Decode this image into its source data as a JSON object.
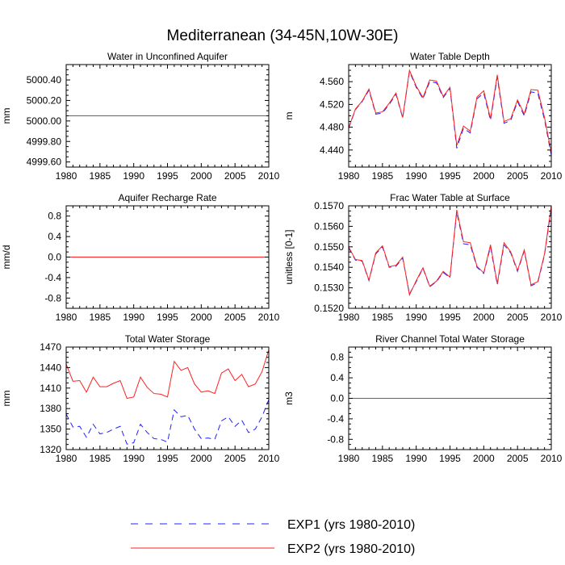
{
  "figure": {
    "title": "Mediterranean (34-45N,10W-30E)"
  },
  "legend": {
    "entries": [
      {
        "label": "EXP1 (yrs 1980-2010)",
        "color": "#2020ff",
        "dash": "dashed"
      },
      {
        "label": "EXP2 (yrs 1980-2010)",
        "color": "#ff2020",
        "dash": "solid"
      }
    ]
  },
  "chart_data": [
    {
      "type": "line",
      "title": "Water in Unconfined Aquifer",
      "ylabel": "mm",
      "xlim": [
        1980,
        2010
      ],
      "ylim": [
        4999.55,
        5000.55
      ],
      "xticks": [
        1980,
        1985,
        1990,
        1995,
        2000,
        2005,
        2010
      ],
      "yticks": [
        4999.6,
        4999.8,
        5000.0,
        5000.2,
        5000.4
      ],
      "ytick_labels": [
        "4999.60",
        "4999.80",
        "5000.00",
        "5000.20",
        "5000.40"
      ],
      "ytick_side": "left",
      "x": [
        1980,
        2010
      ],
      "series": [
        {
          "name": "EXP1",
          "values": [
            5000.05,
            5000.05
          ]
        },
        {
          "name": "EXP2",
          "values": [
            5000.05,
            5000.05
          ]
        }
      ]
    },
    {
      "type": "line",
      "title": "Water Table Depth",
      "ylabel": "m",
      "xlim": [
        1980,
        2010
      ],
      "ylim": [
        4.41,
        4.59
      ],
      "xticks": [
        1980,
        1985,
        1990,
        1995,
        2000,
        2005,
        2010
      ],
      "yticks": [
        4.44,
        4.48,
        4.52,
        4.56
      ],
      "ytick_labels": [
        "4.440",
        "4.480",
        "4.520",
        "4.560"
      ],
      "ytick_side": "left",
      "x": [
        1980,
        1981,
        1982,
        1983,
        1984,
        1985,
        1986,
        1987,
        1988,
        1989,
        1990,
        1991,
        1992,
        1993,
        1994,
        1995,
        1996,
        1997,
        1998,
        1999,
        2000,
        2001,
        2002,
        2003,
        2004,
        2005,
        2006,
        2007,
        2008,
        2009,
        2010
      ],
      "series": [
        {
          "name": "EXP1",
          "values": [
            4.478,
            4.511,
            4.525,
            4.545,
            4.503,
            4.505,
            4.52,
            4.538,
            4.496,
            4.578,
            4.55,
            4.53,
            4.56,
            4.558,
            4.532,
            4.548,
            4.443,
            4.478,
            4.47,
            4.53,
            4.54,
            4.492,
            4.568,
            4.487,
            4.492,
            4.525,
            4.5,
            4.542,
            4.54,
            4.493,
            4.431
          ]
        },
        {
          "name": "EXP2",
          "values": [
            4.479,
            4.512,
            4.526,
            4.547,
            4.505,
            4.507,
            4.522,
            4.54,
            4.497,
            4.58,
            4.552,
            4.532,
            4.563,
            4.561,
            4.534,
            4.55,
            4.448,
            4.482,
            4.473,
            4.533,
            4.544,
            4.495,
            4.572,
            4.49,
            4.495,
            4.528,
            4.503,
            4.546,
            4.545,
            4.497,
            4.436
          ]
        }
      ]
    },
    {
      "type": "line",
      "title": "Aquifer Recharge Rate",
      "ylabel": "mm/d",
      "xlim": [
        1980,
        2010
      ],
      "ylim": [
        -1.0,
        1.0
      ],
      "xticks": [
        1980,
        1985,
        1990,
        1995,
        2000,
        2005,
        2010
      ],
      "yticks": [
        -0.8,
        -0.4,
        0.0,
        0.4,
        0.8
      ],
      "ytick_labels": [
        "-0.8",
        "-0.4",
        "0.0",
        "0.4",
        "0.8"
      ],
      "ytick_side": "left",
      "x": [
        1980,
        2010
      ],
      "series": [
        {
          "name": "EXP1",
          "values": [
            0.0,
            0.0
          ]
        },
        {
          "name": "EXP2",
          "values": [
            0.0,
            0.0
          ]
        }
      ]
    },
    {
      "type": "line",
      "title": "Frac Water Table at Surface",
      "ylabel": "unitless [0-1]",
      "xlim": [
        1980,
        2010
      ],
      "ylim": [
        0.152,
        0.157
      ],
      "xticks": [
        1980,
        1985,
        1990,
        1995,
        2000,
        2005,
        2010
      ],
      "yticks": [
        0.152,
        0.153,
        0.154,
        0.155,
        0.156,
        0.157
      ],
      "ytick_labels": [
        "0.1520",
        "0.1530",
        "0.1540",
        "0.1550",
        "0.1560",
        "0.1570"
      ],
      "ytick_side": "left",
      "x": [
        1980,
        1981,
        1982,
        1983,
        1984,
        1985,
        1986,
        1987,
        1988,
        1989,
        1990,
        1991,
        1992,
        1993,
        1994,
        1995,
        1996,
        1997,
        1998,
        1999,
        2000,
        2001,
        2002,
        2003,
        2004,
        2005,
        2006,
        2007,
        2008,
        2009,
        2010
      ],
      "series": [
        {
          "name": "EXP1",
          "values": [
            0.15495,
            0.15435,
            0.1543,
            0.15335,
            0.15465,
            0.155,
            0.154,
            0.15405,
            0.15445,
            0.1527,
            0.1533,
            0.15395,
            0.15305,
            0.1533,
            0.15375,
            0.1535,
            0.1567,
            0.15515,
            0.1551,
            0.154,
            0.1537,
            0.155,
            0.15315,
            0.1551,
            0.1547,
            0.1538,
            0.1548,
            0.1531,
            0.15325,
            0.1546,
            0.1569
          ]
        },
        {
          "name": "EXP2",
          "values": [
            0.155,
            0.15438,
            0.15433,
            0.15338,
            0.1547,
            0.15505,
            0.15403,
            0.1541,
            0.1545,
            0.15265,
            0.15335,
            0.15398,
            0.15308,
            0.15333,
            0.1538,
            0.15352,
            0.1568,
            0.15525,
            0.1552,
            0.15405,
            0.15373,
            0.1551,
            0.1532,
            0.1552,
            0.15475,
            0.15385,
            0.15485,
            0.15315,
            0.1533,
            0.15465,
            0.157
          ]
        }
      ]
    },
    {
      "type": "line",
      "title": "Total Water Storage",
      "ylabel": "mm",
      "xlim": [
        1980,
        2010
      ],
      "ylim": [
        1320,
        1470
      ],
      "xticks": [
        1980,
        1985,
        1990,
        1995,
        2000,
        2005,
        2010
      ],
      "yticks": [
        1320,
        1350,
        1380,
        1410,
        1440,
        1470
      ],
      "ytick_labels": [
        "1320",
        "1350",
        "1380",
        "1410",
        "1440",
        "1470"
      ],
      "ytick_side": "left",
      "x": [
        1980,
        1981,
        1982,
        1983,
        1984,
        1985,
        1986,
        1987,
        1988,
        1989,
        1990,
        1991,
        1992,
        1993,
        1994,
        1995,
        1996,
        1997,
        1998,
        1999,
        2000,
        2001,
        2002,
        2003,
        2004,
        2005,
        2006,
        2007,
        2008,
        2009,
        2010
      ],
      "series": [
        {
          "name": "EXP1",
          "values": [
            1372,
            1353,
            1354,
            1338,
            1357,
            1343,
            1345,
            1350,
            1354,
            1328,
            1330,
            1357,
            1345,
            1336,
            1335,
            1331,
            1378,
            1368,
            1370,
            1350,
            1336,
            1337,
            1335,
            1362,
            1368,
            1354,
            1363,
            1345,
            1350,
            1368,
            1393
          ]
        },
        {
          "name": "EXP2",
          "values": [
            1445,
            1420,
            1421,
            1404,
            1426,
            1412,
            1412,
            1417,
            1421,
            1395,
            1397,
            1426,
            1411,
            1402,
            1401,
            1397,
            1449,
            1436,
            1440,
            1416,
            1404,
            1406,
            1402,
            1432,
            1438,
            1421,
            1430,
            1412,
            1416,
            1434,
            1466
          ]
        }
      ]
    },
    {
      "type": "line",
      "title": "River Channel Total Water Storage",
      "ylabel": "m3",
      "xlim": [
        1980,
        2010
      ],
      "ylim": [
        -1.0,
        1.0
      ],
      "xticks": [
        1980,
        1985,
        1990,
        1995,
        2000,
        2005,
        2010
      ],
      "yticks": [
        -0.8,
        -0.4,
        0.0,
        0.4,
        0.8
      ],
      "ytick_labels": [
        "-0.8",
        "-0.4",
        "0.0",
        "0.4",
        "0.8"
      ],
      "ytick_side": "left",
      "x": [
        1980,
        2010
      ],
      "series": [
        {
          "name": "EXP1",
          "values": [
            0.0,
            0.0
          ]
        },
        {
          "name": "EXP2",
          "values": [
            0.0,
            0.0
          ]
        }
      ]
    }
  ]
}
